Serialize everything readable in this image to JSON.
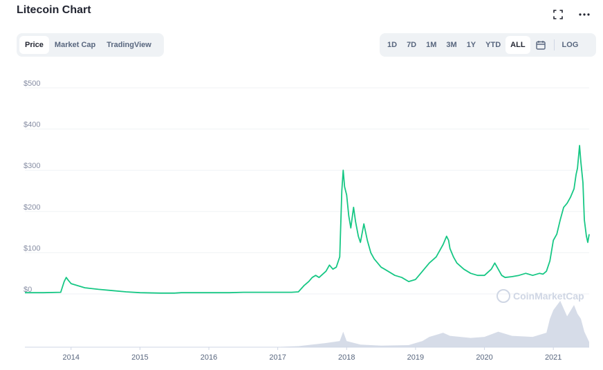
{
  "title": "Litecoin Chart",
  "tabs": [
    {
      "label": "Price",
      "active": true
    },
    {
      "label": "Market Cap",
      "active": false
    },
    {
      "label": "TradingView",
      "active": false
    }
  ],
  "ranges": [
    {
      "label": "1D",
      "active": false
    },
    {
      "label": "7D",
      "active": false
    },
    {
      "label": "1M",
      "active": false
    },
    {
      "label": "3M",
      "active": false
    },
    {
      "label": "1Y",
      "active": false
    },
    {
      "label": "YTD",
      "active": false
    },
    {
      "label": "ALL",
      "active": true
    }
  ],
  "log_label": "LOG",
  "icons": {
    "fullscreen": "expand-icon",
    "more": "more-icon",
    "calendar": "calendar-icon"
  },
  "colors": {
    "line": "#16c784",
    "volume": "#cfd6e4",
    "grid": "#eff2f5"
  },
  "watermark": "CoinMarketCap",
  "chart_data": {
    "type": "line",
    "title": "",
    "xlabel": "",
    "ylabel": "",
    "y_tick_labels": [
      "$0",
      "$100",
      "$200",
      "$300",
      "$400",
      "$500"
    ],
    "y_ticks": [
      0,
      100,
      200,
      300,
      400,
      500
    ],
    "ylim": [
      0,
      500
    ],
    "x_tick_labels": [
      "2014",
      "2015",
      "2016",
      "2017",
      "2018",
      "2019",
      "2020",
      "2021"
    ],
    "x_ticks": [
      2014,
      2015,
      2016,
      2017,
      2018,
      2019,
      2020,
      2021
    ],
    "xlim": [
      2013.33,
      2021.52
    ],
    "grid": true,
    "legend": "none",
    "series": [
      {
        "values_unit": "USD",
        "x": [
          2013.33,
          2013.6,
          2013.85,
          2013.9,
          2013.93,
          2013.96,
          2014.0,
          2014.1,
          2014.2,
          2014.4,
          2014.6,
          2014.8,
          2015.0,
          2015.3,
          2015.5,
          2015.6,
          2015.7,
          2016.0,
          2016.3,
          2016.5,
          2016.8,
          2017.0,
          2017.2,
          2017.3,
          2017.38,
          2017.45,
          2017.5,
          2017.55,
          2017.6,
          2017.7,
          2017.75,
          2017.8,
          2017.85,
          2017.9,
          2017.93,
          2017.95,
          2017.97,
          2018.0,
          2018.03,
          2018.06,
          2018.1,
          2018.13,
          2018.17,
          2018.2,
          2018.25,
          2018.3,
          2018.35,
          2018.4,
          2018.45,
          2018.5,
          2018.55,
          2018.6,
          2018.7,
          2018.8,
          2018.9,
          2019.0,
          2019.05,
          2019.1,
          2019.2,
          2019.3,
          2019.4,
          2019.45,
          2019.48,
          2019.5,
          2019.55,
          2019.6,
          2019.7,
          2019.8,
          2019.9,
          2020.0,
          2020.1,
          2020.15,
          2020.2,
          2020.25,
          2020.3,
          2020.4,
          2020.5,
          2020.6,
          2020.7,
          2020.8,
          2020.85,
          2020.9,
          2020.95,
          2021.0,
          2021.05,
          2021.1,
          2021.15,
          2021.2,
          2021.25,
          2021.3,
          2021.33,
          2021.35,
          2021.38,
          2021.4,
          2021.43,
          2021.45,
          2021.48,
          2021.5,
          2021.52
        ],
        "values": [
          3,
          3,
          4,
          30,
          40,
          33,
          25,
          20,
          15,
          11,
          8,
          5,
          3,
          2,
          2,
          3,
          3,
          3,
          3,
          4,
          4,
          4,
          4,
          5,
          20,
          30,
          40,
          45,
          40,
          55,
          70,
          60,
          65,
          90,
          250,
          300,
          260,
          240,
          190,
          160,
          210,
          175,
          140,
          125,
          170,
          130,
          100,
          85,
          75,
          65,
          60,
          55,
          45,
          40,
          30,
          35,
          45,
          55,
          75,
          90,
          120,
          140,
          130,
          110,
          90,
          75,
          60,
          50,
          45,
          45,
          60,
          75,
          60,
          45,
          40,
          42,
          45,
          50,
          45,
          50,
          48,
          55,
          80,
          130,
          145,
          180,
          210,
          220,
          235,
          255,
          290,
          305,
          360,
          320,
          270,
          180,
          140,
          125,
          145
        ]
      }
    ],
    "volume_series": {
      "x": [
        2013.33,
        2016.9,
        2017.3,
        2017.5,
        2017.7,
        2017.9,
        2017.95,
        2018.0,
        2018.2,
        2018.5,
        2018.9,
        2019.1,
        2019.2,
        2019.4,
        2019.5,
        2019.8,
        2020.0,
        2020.2,
        2020.4,
        2020.7,
        2020.9,
        2020.95,
        2021.0,
        2021.1,
        2021.2,
        2021.3,
        2021.35,
        2021.4,
        2021.45,
        2021.52
      ],
      "relative_values": [
        0,
        0,
        0.02,
        0.05,
        0.08,
        0.12,
        0.3,
        0.12,
        0.05,
        0.03,
        0.04,
        0.12,
        0.2,
        0.28,
        0.22,
        0.18,
        0.2,
        0.3,
        0.22,
        0.2,
        0.28,
        0.55,
        0.72,
        0.9,
        0.6,
        0.82,
        0.65,
        0.55,
        0.3,
        0.1
      ]
    }
  }
}
